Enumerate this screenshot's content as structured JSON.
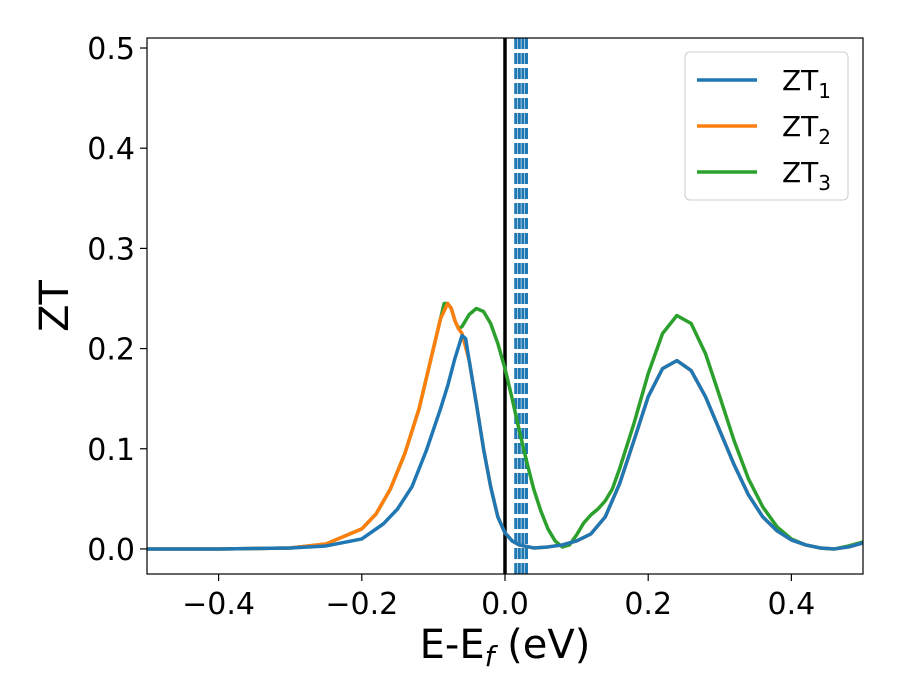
{
  "chart_data": {
    "type": "line",
    "xlabel": "E-E",
    "xlabel_sub": "f",
    "xlabel_unit": " (eV)",
    "ylabel": "ZT",
    "xlim": [
      -0.5,
      0.5
    ],
    "ylim": [
      -0.025,
      0.51
    ],
    "x_ticks": [
      -0.4,
      -0.2,
      0.0,
      0.2,
      0.4
    ],
    "x_tick_labels": [
      "−0.4",
      "−0.2",
      "0.0",
      "0.2",
      "0.4"
    ],
    "y_ticks": [
      0.0,
      0.1,
      0.2,
      0.3,
      0.4,
      0.5
    ],
    "y_tick_labels": [
      "0.0",
      "0.1",
      "0.2",
      "0.3",
      "0.4",
      "0.5"
    ],
    "grid": false,
    "legend_position": "top-right",
    "series": [
      {
        "name": "ZT",
        "name_sub": "1",
        "color": "#1f77b4",
        "points": [
          [
            -0.5,
            0.0
          ],
          [
            -0.4,
            0.0
          ],
          [
            -0.3,
            0.001
          ],
          [
            -0.25,
            0.003
          ],
          [
            -0.2,
            0.01
          ],
          [
            -0.17,
            0.025
          ],
          [
            -0.15,
            0.04
          ],
          [
            -0.13,
            0.062
          ],
          [
            -0.11,
            0.098
          ],
          [
            -0.09,
            0.14
          ],
          [
            -0.08,
            0.163
          ],
          [
            -0.07,
            0.19
          ],
          [
            -0.06,
            0.213
          ],
          [
            -0.055,
            0.21
          ],
          [
            -0.05,
            0.188
          ],
          [
            -0.04,
            0.145
          ],
          [
            -0.03,
            0.1
          ],
          [
            -0.02,
            0.062
          ],
          [
            -0.01,
            0.032
          ],
          [
            0.0,
            0.016
          ],
          [
            0.01,
            0.008
          ],
          [
            0.02,
            0.004
          ],
          [
            0.04,
            0.001
          ],
          [
            0.06,
            0.002
          ],
          [
            0.08,
            0.004
          ],
          [
            0.1,
            0.008
          ],
          [
            0.12,
            0.015
          ],
          [
            0.14,
            0.032
          ],
          [
            0.16,
            0.065
          ],
          [
            0.18,
            0.108
          ],
          [
            0.2,
            0.152
          ],
          [
            0.22,
            0.18
          ],
          [
            0.24,
            0.188
          ],
          [
            0.26,
            0.178
          ],
          [
            0.28,
            0.152
          ],
          [
            0.3,
            0.118
          ],
          [
            0.32,
            0.084
          ],
          [
            0.34,
            0.054
          ],
          [
            0.36,
            0.032
          ],
          [
            0.38,
            0.018
          ],
          [
            0.4,
            0.009
          ],
          [
            0.42,
            0.004
          ],
          [
            0.44,
            0.001
          ],
          [
            0.46,
            0.0
          ],
          [
            0.48,
            0.002
          ],
          [
            0.5,
            0.006
          ]
        ]
      },
      {
        "name": "ZT",
        "name_sub": "2",
        "color": "#ff7f0e",
        "points": [
          [
            -0.5,
            0.0
          ],
          [
            -0.4,
            0.0
          ],
          [
            -0.3,
            0.001
          ],
          [
            -0.25,
            0.005
          ],
          [
            -0.2,
            0.02
          ],
          [
            -0.18,
            0.035
          ],
          [
            -0.16,
            0.06
          ],
          [
            -0.14,
            0.095
          ],
          [
            -0.12,
            0.14
          ],
          [
            -0.1,
            0.2
          ],
          [
            -0.09,
            0.23
          ],
          [
            -0.08,
            0.245
          ],
          [
            -0.075,
            0.24
          ],
          [
            -0.07,
            0.228
          ],
          [
            -0.065,
            0.22
          ],
          [
            -0.06,
            0.215
          ],
          [
            -0.05,
            0.188
          ],
          [
            -0.04,
            0.145
          ],
          [
            -0.03,
            0.1
          ],
          [
            -0.02,
            0.062
          ],
          [
            -0.01,
            0.032
          ],
          [
            0.0,
            0.016
          ],
          [
            0.01,
            0.008
          ],
          [
            0.02,
            0.004
          ],
          [
            0.04,
            0.001
          ],
          [
            0.06,
            0.002
          ],
          [
            0.08,
            0.004
          ],
          [
            0.1,
            0.008
          ],
          [
            0.12,
            0.015
          ],
          [
            0.14,
            0.032
          ],
          [
            0.16,
            0.065
          ],
          [
            0.18,
            0.108
          ],
          [
            0.2,
            0.152
          ],
          [
            0.22,
            0.18
          ],
          [
            0.24,
            0.188
          ],
          [
            0.26,
            0.178
          ],
          [
            0.28,
            0.152
          ],
          [
            0.3,
            0.118
          ],
          [
            0.32,
            0.084
          ],
          [
            0.34,
            0.054
          ],
          [
            0.36,
            0.032
          ],
          [
            0.38,
            0.018
          ],
          [
            0.4,
            0.009
          ],
          [
            0.42,
            0.004
          ],
          [
            0.44,
            0.001
          ],
          [
            0.46,
            0.0
          ],
          [
            0.48,
            0.002
          ],
          [
            0.5,
            0.006
          ]
        ]
      },
      {
        "name": "ZT",
        "name_sub": "3",
        "color": "#2ca02c",
        "points": [
          [
            -0.5,
            0.0
          ],
          [
            -0.4,
            0.0
          ],
          [
            -0.3,
            0.001
          ],
          [
            -0.25,
            0.005
          ],
          [
            -0.2,
            0.02
          ],
          [
            -0.18,
            0.035
          ],
          [
            -0.16,
            0.06
          ],
          [
            -0.14,
            0.095
          ],
          [
            -0.12,
            0.14
          ],
          [
            -0.1,
            0.2
          ],
          [
            -0.09,
            0.23
          ],
          [
            -0.085,
            0.245
          ],
          [
            -0.08,
            0.245
          ],
          [
            -0.075,
            0.24
          ],
          [
            -0.07,
            0.228
          ],
          [
            -0.065,
            0.22
          ],
          [
            -0.06,
            0.222
          ],
          [
            -0.05,
            0.234
          ],
          [
            -0.04,
            0.24
          ],
          [
            -0.03,
            0.237
          ],
          [
            -0.02,
            0.225
          ],
          [
            -0.01,
            0.205
          ],
          [
            0.0,
            0.18
          ],
          [
            0.01,
            0.15
          ],
          [
            0.02,
            0.118
          ],
          [
            0.03,
            0.088
          ],
          [
            0.04,
            0.06
          ],
          [
            0.05,
            0.038
          ],
          [
            0.06,
            0.02
          ],
          [
            0.07,
            0.008
          ],
          [
            0.08,
            0.002
          ],
          [
            0.09,
            0.004
          ],
          [
            0.1,
            0.014
          ],
          [
            0.11,
            0.026
          ],
          [
            0.12,
            0.034
          ],
          [
            0.13,
            0.04
          ],
          [
            0.14,
            0.048
          ],
          [
            0.15,
            0.06
          ],
          [
            0.16,
            0.08
          ],
          [
            0.18,
            0.125
          ],
          [
            0.2,
            0.175
          ],
          [
            0.22,
            0.215
          ],
          [
            0.24,
            0.233
          ],
          [
            0.26,
            0.225
          ],
          [
            0.28,
            0.195
          ],
          [
            0.3,
            0.152
          ],
          [
            0.32,
            0.108
          ],
          [
            0.34,
            0.07
          ],
          [
            0.36,
            0.042
          ],
          [
            0.38,
            0.022
          ],
          [
            0.4,
            0.01
          ],
          [
            0.42,
            0.004
          ],
          [
            0.44,
            0.001
          ],
          [
            0.46,
            0.0
          ],
          [
            0.48,
            0.003
          ],
          [
            0.5,
            0.007
          ]
        ]
      }
    ],
    "vlines": [
      {
        "x": 0.0,
        "color": "#000000",
        "style": "solid"
      },
      {
        "x": 0.015,
        "color": "#1f77b4",
        "style": "dashed"
      },
      {
        "x": 0.02,
        "color": "#1f77b4",
        "style": "dashed"
      },
      {
        "x": 0.025,
        "color": "#1f77b4",
        "style": "dashed"
      },
      {
        "x": 0.03,
        "color": "#1f77b4",
        "style": "dashed"
      }
    ]
  }
}
